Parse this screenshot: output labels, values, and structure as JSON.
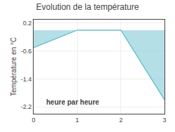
{
  "chart_data": {
    "type": "area",
    "title": "Evolution de la température",
    "xlabel": "heure par heure",
    "ylabel": "Température en °C",
    "x": [
      0,
      1,
      2,
      3
    ],
    "values": [
      -0.5,
      0.0,
      0.0,
      -2.0
    ],
    "color": "#6bbfcf",
    "xlim": [
      0,
      3
    ],
    "ylim": [
      -2.4,
      0.3
    ],
    "xticks": [
      0,
      1,
      2,
      3
    ],
    "yticks": [
      0.2,
      -0.6,
      -1.4,
      -2.2
    ],
    "grid": true
  }
}
